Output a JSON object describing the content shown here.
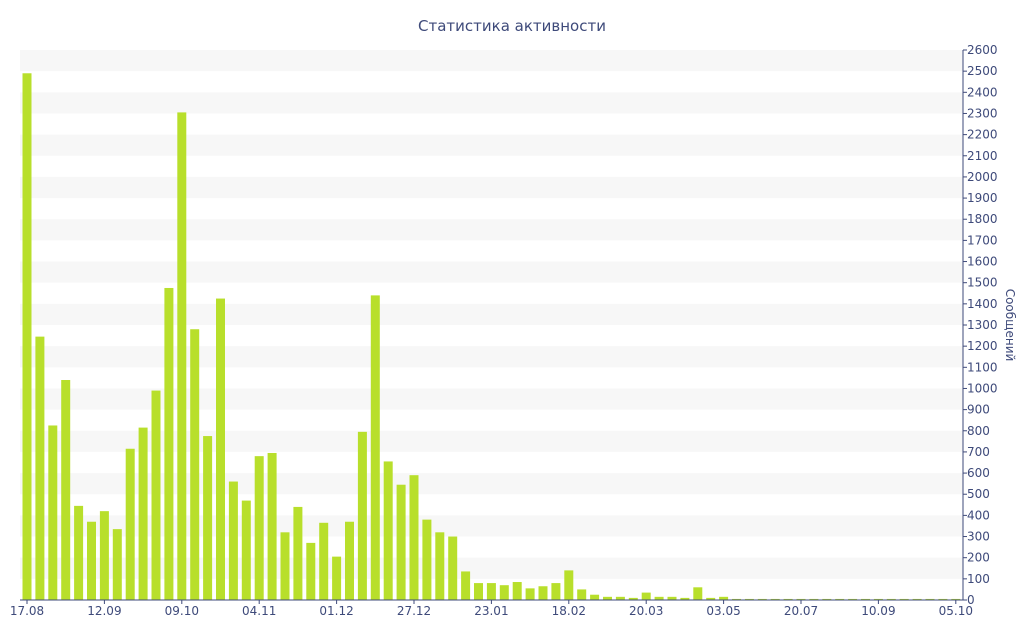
{
  "chart_data": {
    "type": "bar",
    "title": "Статистика активности",
    "xlabel": "",
    "ylabel": "Сообщений",
    "ylim": [
      0,
      2600
    ],
    "y_tick_step": 100,
    "y_axis_position": "right",
    "grid": "alternating-horizontal-bands",
    "bar_color": "#b8df2b",
    "axis_color": "#3e4a7a",
    "x_tick_labels": [
      {
        "label": "17.08",
        "index": 0
      },
      {
        "label": "12.09",
        "index": 6
      },
      {
        "label": "09.10",
        "index": 12
      },
      {
        "label": "04.11",
        "index": 18
      },
      {
        "label": "01.12",
        "index": 24
      },
      {
        "label": "27.12",
        "index": 30
      },
      {
        "label": "23.01",
        "index": 36
      },
      {
        "label": "18.02",
        "index": 42
      },
      {
        "label": "20.03",
        "index": 48
      },
      {
        "label": "03.05",
        "index": 54
      },
      {
        "label": "20.07",
        "index": 60
      },
      {
        "label": "10.09",
        "index": 66
      },
      {
        "label": "05.10",
        "index": 72
      }
    ],
    "values": [
      2490,
      1245,
      825,
      1040,
      445,
      370,
      420,
      335,
      715,
      815,
      990,
      1475,
      2305,
      1280,
      775,
      1425,
      560,
      470,
      680,
      695,
      320,
      440,
      270,
      365,
      205,
      370,
      795,
      1440,
      655,
      545,
      590,
      380,
      320,
      300,
      135,
      80,
      80,
      70,
      85,
      55,
      65,
      80,
      140,
      50,
      25,
      15,
      15,
      10,
      35,
      15,
      15,
      10,
      60,
      10,
      15,
      5,
      5,
      5,
      5,
      5,
      5,
      5,
      5,
      5,
      5,
      5,
      5,
      5,
      5,
      5,
      5,
      5,
      5
    ]
  }
}
